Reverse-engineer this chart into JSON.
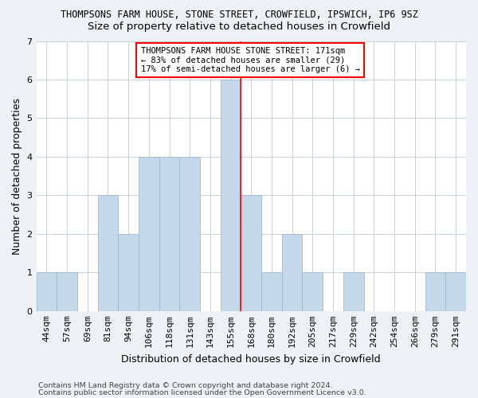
{
  "title": "THOMPSONS FARM HOUSE, STONE STREET, CROWFIELD, IPSWICH, IP6 9SZ",
  "subtitle": "Size of property relative to detached houses in Crowfield",
  "xlabel": "Distribution of detached houses by size in Crowfield",
  "ylabel": "Number of detached properties",
  "bar_labels": [
    "44sqm",
    "57sqm",
    "69sqm",
    "81sqm",
    "94sqm",
    "106sqm",
    "118sqm",
    "131sqm",
    "143sqm",
    "155sqm",
    "168sqm",
    "180sqm",
    "192sqm",
    "205sqm",
    "217sqm",
    "229sqm",
    "242sqm",
    "254sqm",
    "266sqm",
    "279sqm",
    "291sqm"
  ],
  "bar_values": [
    1,
    1,
    0,
    3,
    2,
    4,
    4,
    4,
    0,
    6,
    3,
    1,
    2,
    1,
    0,
    1,
    0,
    0,
    0,
    1,
    1
  ],
  "bar_color": "#c6d9ea",
  "bar_edge_color": "#a0b8d0",
  "red_line_index": 9.5,
  "annotation_text": "THOMPSONS FARM HOUSE STONE STREET: 171sqm\n← 83% of detached houses are smaller (29)\n17% of semi-detached houses are larger (6) →",
  "annotation_box_color": "white",
  "annotation_border_color": "red",
  "ylim": [
    0,
    7
  ],
  "yticks": [
    0,
    1,
    2,
    3,
    4,
    5,
    6,
    7
  ],
  "footer1": "Contains HM Land Registry data © Crown copyright and database right 2024.",
  "footer2": "Contains public sector information licensed under the Open Government Licence v3.0.",
  "background_color": "#eef2f7",
  "plot_background": "white",
  "grid_color": "#c8d0da",
  "title_fontsize": 8.5,
  "subtitle_fontsize": 9.5,
  "ylabel_fontsize": 9,
  "xlabel_fontsize": 9,
  "tick_fontsize": 8,
  "footer_fontsize": 6.8
}
